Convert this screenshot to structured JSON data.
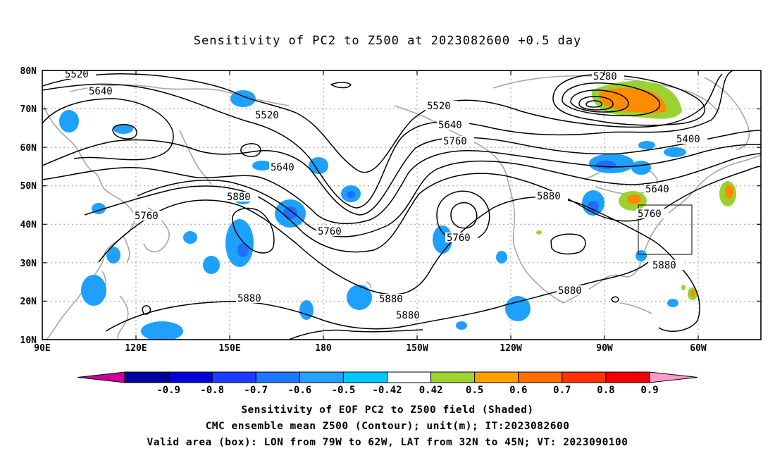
{
  "title": "Sensitivity of PC2 to Z500 at 2023082600 +0.5 day",
  "lat_labels": [
    "80N",
    "70N",
    "60N",
    "50N",
    "40N",
    "30N",
    "20N",
    "10N"
  ],
  "lon_labels": [
    "90E",
    "120E",
    "150E",
    "180",
    "150W",
    "120W",
    "90W",
    "60W"
  ],
  "contour_labels": [
    {
      "text": "5520",
      "id": "c5520a"
    },
    {
      "text": "5640",
      "id": "c5640a"
    },
    {
      "text": "5520",
      "id": "c5520b"
    },
    {
      "text": "5640",
      "id": "c5640b"
    },
    {
      "text": "5760",
      "id": "c5760a"
    },
    {
      "text": "5880",
      "id": "c5880a"
    },
    {
      "text": "5760",
      "id": "c5760b"
    },
    {
      "text": "5880",
      "id": "c5880b"
    },
    {
      "text": "5880",
      "id": "c5880c"
    },
    {
      "text": "5520",
      "id": "c5520c"
    },
    {
      "text": "5640",
      "id": "c5640c"
    },
    {
      "text": "5760",
      "id": "c5760c"
    },
    {
      "text": "5760",
      "id": "c5760d"
    },
    {
      "text": "5880",
      "id": "c5880d"
    },
    {
      "text": "5880",
      "id": "c5880e"
    },
    {
      "text": "5280",
      "id": "c5280"
    },
    {
      "text": "5400",
      "id": "c5400"
    },
    {
      "text": "5640",
      "id": "c5640d"
    },
    {
      "text": "5760",
      "id": "c5760e"
    },
    {
      "text": "5880",
      "id": "c5880f"
    }
  ],
  "colorbar": {
    "labels": [
      "-0.9",
      "-0.8",
      "-0.7",
      "-0.6",
      "-0.5",
      "-0.42",
      "0.42",
      "0.5",
      "0.6",
      "0.7",
      "0.8",
      "0.9"
    ],
    "colors": {
      "left_tip": "#cc0099",
      "bins": [
        "#00009f",
        "#0000d8",
        "#1e3cff",
        "#1e78ff",
        "#28a0ff",
        "#00c8ff",
        "#ffffff",
        "#a0d232",
        "#ffa000",
        "#ff6e00",
        "#ff3200",
        "#f00000"
      ],
      "right_tip": "#ff99cc"
    }
  },
  "captions": {
    "line1": "Sensitivity of EOF PC2 to Z500 field (Shaded)",
    "line2": "CMC ensemble mean Z500 (Contour); unit(m); IT:2023082600",
    "line3": "Valid area (box): LON from 79W to 62W, LAT from 32N to 45N; VT: 2023090100"
  },
  "colors": {
    "coast": "#a6a6a6",
    "contour": "#000000",
    "neg": "#1ea0ff",
    "neg_core": "#1e6eff",
    "pos_green": "#9bd232",
    "pos_orange": "#ff8c00"
  }
}
